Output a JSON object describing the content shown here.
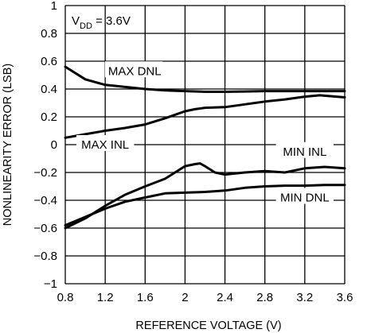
{
  "chart_data": {
    "type": "line",
    "xlabel": "REFERENCE VOLTAGE (V)",
    "ylabel": "NONLINEARITY ERROR (LSB)",
    "xlim": [
      0.8,
      3.6
    ],
    "ylim": [
      -1,
      1
    ],
    "xticks": [
      "0.8",
      "1.2",
      "1.6",
      "2",
      "2.4",
      "2.8",
      "3.2",
      "3.6"
    ],
    "xtick_values": [
      0.8,
      1.2,
      1.6,
      2.0,
      2.4,
      2.8,
      3.2,
      3.6
    ],
    "yticks": [
      "1",
      "0.8",
      "0.6",
      "0.4",
      "0.2",
      "0",
      "−0.2",
      "−0.4",
      "−0.6",
      "−0.8",
      "−1"
    ],
    "ytick_values": [
      1,
      0.8,
      0.6,
      0.4,
      0.2,
      0,
      -0.2,
      -0.4,
      -0.6,
      -0.8,
      -1
    ],
    "grid": true,
    "condition_label": {
      "main": "V",
      "sub": "DD",
      "rest": " = 3.6V"
    },
    "series": [
      {
        "name": "MAX DNL",
        "x": [
          0.8,
          1.0,
          1.2,
          1.4,
          1.6,
          1.8,
          2.0,
          2.2,
          2.4,
          2.6,
          2.8,
          3.0,
          3.2,
          3.4,
          3.6
        ],
        "y": [
          0.56,
          0.47,
          0.43,
          0.415,
          0.4,
          0.39,
          0.385,
          0.38,
          0.38,
          0.382,
          0.385,
          0.385,
          0.385,
          0.385,
          0.385
        ]
      },
      {
        "name": "MAX INL",
        "x": [
          0.8,
          1.0,
          1.2,
          1.4,
          1.6,
          1.8,
          2.0,
          2.1,
          2.2,
          2.4,
          2.6,
          2.8,
          3.0,
          3.2,
          3.35,
          3.6
        ],
        "y": [
          0.05,
          0.075,
          0.1,
          0.12,
          0.145,
          0.19,
          0.24,
          0.255,
          0.265,
          0.27,
          0.29,
          0.31,
          0.325,
          0.345,
          0.355,
          0.34
        ]
      },
      {
        "name": "MIN INL",
        "x": [
          0.8,
          1.0,
          1.2,
          1.4,
          1.6,
          1.8,
          1.9,
          2.0,
          2.1,
          2.15,
          2.2,
          2.3,
          2.4,
          2.6,
          2.8,
          2.9,
          3.0,
          3.2,
          3.4,
          3.6
        ],
        "y": [
          -0.6,
          -0.53,
          -0.44,
          -0.36,
          -0.3,
          -0.245,
          -0.2,
          -0.155,
          -0.14,
          -0.135,
          -0.155,
          -0.2,
          -0.215,
          -0.2,
          -0.19,
          -0.195,
          -0.2,
          -0.17,
          -0.16,
          -0.17
        ]
      },
      {
        "name": "MIN DNL",
        "x": [
          0.8,
          1.0,
          1.2,
          1.4,
          1.6,
          1.8,
          2.0,
          2.2,
          2.4,
          2.6,
          2.8,
          3.0,
          3.2,
          3.4,
          3.6
        ],
        "y": [
          -0.58,
          -0.52,
          -0.46,
          -0.41,
          -0.38,
          -0.35,
          -0.345,
          -0.34,
          -0.33,
          -0.31,
          -0.3,
          -0.295,
          -0.295,
          -0.29,
          -0.29
        ]
      }
    ],
    "annotations": [
      {
        "text": "MAX DNL",
        "x": 1.23,
        "y": 0.53,
        "anchor": "start"
      },
      {
        "text": "MAX INL",
        "x": 1.2,
        "y": 0.0,
        "anchor": "middle"
      },
      {
        "text": "MIN INL",
        "x": 3.2,
        "y": -0.05,
        "anchor": "middle"
      },
      {
        "text": "MIN DNL",
        "x": 3.2,
        "y": -0.38,
        "anchor": "middle"
      }
    ]
  }
}
